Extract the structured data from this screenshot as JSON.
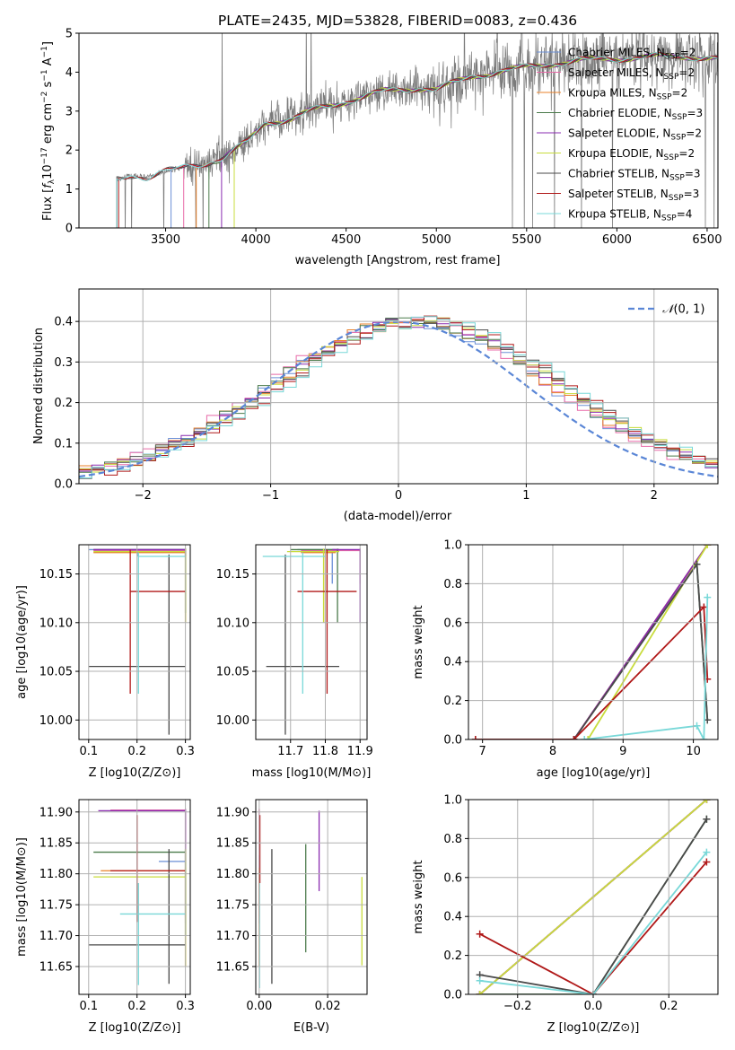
{
  "title": "PLATE=2435, MJD=53828, FIBERID=0083, z=0.436",
  "legend_spectrum": [
    {
      "label": "Chabrier MILES, N",
      "sub": "SSP",
      "tail": "=2",
      "color": "#6b8fd6"
    },
    {
      "label": "Salpeter MILES, N",
      "sub": "SSP",
      "tail": "=2",
      "color": "#e86aa8"
    },
    {
      "label": "Kroupa MILES, N",
      "sub": "SSP",
      "tail": "=2",
      "color": "#e8802a"
    },
    {
      "label": "Chabrier ELODIE, N",
      "sub": "SSP",
      "tail": "=3",
      "color": "#4a7a4a"
    },
    {
      "label": "Salpeter ELODIE, N",
      "sub": "SSP",
      "tail": "=2",
      "color": "#8a2bb0"
    },
    {
      "label": "Kroupa ELODIE, N",
      "sub": "SSP",
      "tail": "=2",
      "color": "#c8dc3c"
    },
    {
      "label": "Chabrier STELIB, N",
      "sub": "SSP",
      "tail": "=3",
      "color": "#4a4a4a"
    },
    {
      "label": "Salpeter STELIB, N",
      "sub": "SSP",
      "tail": "=3",
      "color": "#b01818"
    },
    {
      "label": "Kroupa STELIB, N",
      "sub": "SSP",
      "tail": "=4",
      "color": "#78d8d8"
    }
  ],
  "labels": {
    "spec_xlabel": "wavelength [Angstrom, rest frame]",
    "spec_ylabel": "Flux [f",
    "resid_xlabel": "(data-model)/error",
    "resid_ylabel": "Normed distribution",
    "resid_legend": "N(0, 1)",
    "age_ylabel": "age  [log10(age/yr)]",
    "z_xlabel": "Z [log10(Z/Z⊙)]",
    "mass_xlabel": "mass [log10(M/M⊙)]",
    "mass_ylabel": "mass [log10(M/M⊙)]",
    "ebv_xlabel": "E(B-V)",
    "mw_ylabel": "mass weight",
    "age_xlabel": "age  [log10(age/yr)]"
  },
  "chart_data": [
    {
      "type": "line",
      "panel": "spectrum",
      "title": "PLATE=2435, MJD=53828, FIBERID=0083, z=0.436",
      "xlabel": "wavelength [Angstrom, rest frame]",
      "ylabel": "Flux [f_λ 10^-17 erg cm^-2 s^-1 A^-1]",
      "xlim": [
        3020,
        6560
      ],
      "ylim": [
        0,
        5
      ],
      "xticks": [
        3500,
        4000,
        4500,
        5000,
        5500,
        6000,
        6500
      ],
      "yticks": [
        0,
        1,
        2,
        3,
        4,
        5
      ],
      "grid": false,
      "legend": "top-right",
      "continuum": [
        [
          3230,
          1.25
        ],
        [
          3300,
          1.35
        ],
        [
          3400,
          1.3
        ],
        [
          3500,
          1.45
        ],
        [
          3650,
          1.6
        ],
        [
          3800,
          1.75
        ],
        [
          3950,
          2.2
        ],
        [
          4050,
          2.7
        ],
        [
          4200,
          2.8
        ],
        [
          4300,
          3.0
        ],
        [
          4500,
          3.25
        ],
        [
          4700,
          3.5
        ],
        [
          4900,
          3.6
        ],
        [
          5000,
          3.55
        ],
        [
          5200,
          3.9
        ],
        [
          5400,
          4.05
        ],
        [
          5600,
          4.2
        ],
        [
          5800,
          4.3
        ],
        [
          6000,
          4.35
        ],
        [
          6200,
          4.4
        ],
        [
          6400,
          4.4
        ],
        [
          6560,
          4.35
        ]
      ],
      "data_range": [
        3230,
        6560
      ]
    },
    {
      "type": "bar",
      "panel": "residual_histogram",
      "xlabel": "(data-model)/error",
      "ylabel": "Normed distribution",
      "xlim": [
        -2.5,
        2.5
      ],
      "ylim": [
        0,
        0.48
      ],
      "xticks": [
        -2,
        -1,
        0,
        1,
        2
      ],
      "yticks": [
        0.0,
        0.1,
        0.2,
        0.3,
        0.4
      ],
      "grid": true,
      "legend": "top-right",
      "series_name": "N(0, 1)",
      "bin_width": 0.1
    },
    {
      "type": "scatter",
      "panel": "age_vs_Z",
      "xlabel": "Z [log10(Z/Z⊙)]",
      "ylabel": "age [log10(age/yr)]",
      "xlim": [
        0.08,
        0.31
      ],
      "ylim": [
        9.98,
        10.18
      ],
      "xticks": [
        0.1,
        0.2,
        0.3
      ],
      "yticks": [
        10.0,
        10.05,
        10.1,
        10.15
      ],
      "points": [
        {
          "x": 0.202,
          "y": 10.175,
          "xerr": [
            0.1,
            0.3
          ],
          "yerr": [
            10.168,
            10.175
          ],
          "color": "#6b8fd6"
        },
        {
          "x": 0.3,
          "y": 10.174,
          "xerr": [
            0.11,
            0.3
          ],
          "yerr": [
            10.168,
            10.176
          ],
          "color": "#e86aa8"
        },
        {
          "x": 0.3,
          "y": 10.172,
          "xerr": [
            0.11,
            0.3
          ],
          "yerr": [
            10.1,
            10.176
          ],
          "color": "#e8802a"
        },
        {
          "x": 0.3,
          "y": 10.175,
          "xerr": [
            0.11,
            0.3
          ],
          "yerr": [
            10.11,
            10.176
          ],
          "color": "#4a7a4a"
        },
        {
          "x": 0.3,
          "y": 10.175,
          "xerr": [
            0.11,
            0.3
          ],
          "yerr": [
            10.168,
            10.176
          ],
          "color": "#8a2bb0"
        },
        {
          "x": 0.3,
          "y": 10.173,
          "xerr": [
            0.11,
            0.3
          ],
          "yerr": [
            10.1,
            10.176
          ],
          "color": "#c8dc3c"
        },
        {
          "x": 0.266,
          "y": 10.055,
          "xerr": [
            0.1,
            0.3
          ],
          "yerr": [
            9.985,
            10.17
          ],
          "color": "#4a4a4a"
        },
        {
          "x": 0.186,
          "y": 10.132,
          "xerr": [
            0.186,
            0.3
          ],
          "yerr": [
            10.027,
            10.175
          ],
          "color": "#b01818"
        },
        {
          "x": 0.203,
          "y": 10.168,
          "xerr": [
            0.203,
            0.3
          ],
          "yerr": [
            10.027,
            10.172
          ],
          "color": "#78d8d8"
        }
      ]
    },
    {
      "type": "scatter",
      "panel": "age_vs_mass",
      "xlabel": "mass [log10(M/M⊙)]",
      "xlim": [
        11.6,
        11.92
      ],
      "ylim": [
        9.98,
        10.18
      ],
      "xticks": [
        11.7,
        11.8,
        11.9
      ],
      "yticks": [
        10.0,
        10.05,
        10.1,
        10.15
      ],
      "points": [
        {
          "x": 11.82,
          "y": 10.175,
          "xerr": [
            11.72,
            11.83
          ],
          "yerr": [
            10.14,
            10.175
          ],
          "color": "#6b8fd6"
        },
        {
          "x": 11.9,
          "y": 10.174,
          "xerr": [
            11.73,
            11.9
          ],
          "yerr": [
            10.14,
            10.176
          ],
          "color": "#e86aa8"
        },
        {
          "x": 11.8,
          "y": 10.172,
          "xerr": [
            11.73,
            11.83
          ],
          "yerr": [
            10.1,
            10.176
          ],
          "color": "#e8802a"
        },
        {
          "x": 11.835,
          "y": 10.175,
          "xerr": [
            11.7,
            11.84
          ],
          "yerr": [
            10.1,
            10.176
          ],
          "color": "#4a7a4a"
        },
        {
          "x": 11.9,
          "y": 10.175,
          "xerr": [
            11.82,
            11.9
          ],
          "yerr": [
            10.1,
            10.176
          ],
          "color": "#8a2bb0"
        },
        {
          "x": 11.795,
          "y": 10.173,
          "xerr": [
            11.69,
            11.84
          ],
          "yerr": [
            10.1,
            10.176
          ],
          "color": "#c8dc3c"
        },
        {
          "x": 11.685,
          "y": 10.055,
          "xerr": [
            11.63,
            11.84
          ],
          "yerr": [
            9.985,
            10.17
          ],
          "color": "#4a4a4a"
        },
        {
          "x": 11.805,
          "y": 10.132,
          "xerr": [
            11.72,
            11.89
          ],
          "yerr": [
            10.027,
            10.175
          ],
          "color": "#b01818"
        },
        {
          "x": 11.735,
          "y": 10.168,
          "xerr": [
            11.62,
            11.8
          ],
          "yerr": [
            10.027,
            10.172
          ],
          "color": "#78d8d8"
        }
      ]
    },
    {
      "type": "line",
      "panel": "mass_weight_vs_age",
      "xlabel": "age [log10(age/yr)]",
      "ylabel": "mass weight",
      "xlim": [
        6.8,
        10.35
      ],
      "ylim": [
        0,
        1.0
      ],
      "xticks": [
        7,
        8,
        9,
        10
      ],
      "yticks": [
        0.0,
        0.2,
        0.4,
        0.6,
        0.8,
        1.0
      ],
      "series": [
        {
          "name": "Chabrier MILES",
          "color": "#6b8fd6",
          "x": [
            8.3,
            10.2
          ],
          "y": [
            0.0,
            1.0
          ]
        },
        {
          "name": "Salpeter MILES",
          "color": "#e86aa8",
          "x": [
            8.3,
            10.2
          ],
          "y": [
            0.0,
            1.0
          ]
        },
        {
          "name": "Kroupa MILES",
          "color": "#e8802a",
          "x": [
            8.3,
            10.2
          ],
          "y": [
            0.0,
            1.0
          ]
        },
        {
          "name": "Chabrier ELODIE",
          "color": "#4a7a4a",
          "x": [
            8.3,
            10.05,
            10.2
          ],
          "y": [
            0.0,
            0.9,
            0.1
          ]
        },
        {
          "name": "Salpeter ELODIE",
          "color": "#8a2bb0",
          "x": [
            8.3,
            10.2
          ],
          "y": [
            0.0,
            1.0
          ]
        },
        {
          "name": "Kroupa ELODIE",
          "color": "#c8dc3c",
          "x": [
            8.5,
            10.2
          ],
          "y": [
            0.0,
            1.0
          ]
        },
        {
          "name": "Chabrier STELIB",
          "color": "#4a4a4a",
          "x": [
            6.9,
            8.3,
            10.05,
            10.2
          ],
          "y": [
            0.0,
            0.0,
            0.9,
            0.1
          ]
        },
        {
          "name": "Salpeter STELIB",
          "color": "#b01818",
          "x": [
            6.9,
            8.3,
            10.15,
            10.2
          ],
          "y": [
            0.0,
            0.0,
            0.68,
            0.31
          ]
        },
        {
          "name": "Kroupa STELIB",
          "color": "#78d8d8",
          "x": [
            8.45,
            10.05,
            10.15,
            10.2
          ],
          "y": [
            0.0,
            0.07,
            0.0,
            0.73
          ]
        }
      ]
    },
    {
      "type": "scatter",
      "panel": "mass_vs_Z",
      "xlabel": "Z [log10(Z/Z⊙)]",
      "ylabel": "mass [log10(M/M⊙)]",
      "xlim": [
        0.08,
        0.31
      ],
      "ylim": [
        11.605,
        11.92
      ],
      "xticks": [
        0.1,
        0.2,
        0.3
      ],
      "yticks": [
        11.65,
        11.7,
        11.75,
        11.8,
        11.85,
        11.9
      ],
      "points": [
        {
          "x": 0.3,
          "y": 11.82,
          "xerr": [
            0.245,
            0.3
          ],
          "yerr": [
            11.72,
            11.83
          ],
          "color": "#6b8fd6"
        },
        {
          "x": 0.3,
          "y": 11.903,
          "xerr": [
            0.145,
            0.3
          ],
          "yerr": [
            11.73,
            11.905
          ],
          "color": "#e86aa8"
        },
        {
          "x": 0.3,
          "y": 11.805,
          "xerr": [
            0.125,
            0.3
          ],
          "yerr": [
            11.65,
            11.81
          ],
          "color": "#e8802a"
        },
        {
          "x": 0.3,
          "y": 11.835,
          "xerr": [
            0.11,
            0.3
          ],
          "yerr": [
            11.7,
            11.84
          ],
          "color": "#4a7a4a"
        },
        {
          "x": 0.3,
          "y": 11.902,
          "xerr": [
            0.12,
            0.3
          ],
          "yerr": [
            11.82,
            11.905
          ],
          "color": "#8a2bb0"
        },
        {
          "x": 0.3,
          "y": 11.795,
          "xerr": [
            0.11,
            0.3
          ],
          "yerr": [
            11.65,
            11.84
          ],
          "color": "#c8dc3c"
        },
        {
          "x": 0.266,
          "y": 11.685,
          "xerr": [
            0.1,
            0.3
          ],
          "yerr": [
            11.622,
            11.84
          ],
          "color": "#4a4a4a"
        },
        {
          "x": 0.2,
          "y": 11.805,
          "xerr": [
            0.145,
            0.3
          ],
          "yerr": [
            11.722,
            11.895
          ],
          "color": "#b01818"
        },
        {
          "x": 0.203,
          "y": 11.735,
          "xerr": [
            0.165,
            0.3
          ],
          "yerr": [
            11.62,
            11.785
          ],
          "color": "#78d8d8"
        }
      ]
    },
    {
      "type": "scatter",
      "panel": "mass_vs_EBV",
      "xlabel": "E(B-V)",
      "xlim": [
        -0.001,
        0.0315
      ],
      "ylim": [
        11.605,
        11.92
      ],
      "xticks": [
        0.0,
        0.02
      ],
      "yticks": [
        11.65,
        11.7,
        11.75,
        11.8,
        11.85,
        11.9
      ],
      "points": [
        {
          "x": 0.0,
          "yerr": [
            11.72,
            11.83
          ],
          "color": "#6b8fd6"
        },
        {
          "x": 0.0,
          "yerr": [
            11.73,
            11.905
          ],
          "color": "#e86aa8"
        },
        {
          "x": 0.0,
          "yerr": [
            11.65,
            11.81
          ],
          "color": "#e8802a"
        },
        {
          "x": 0.0136,
          "yerr": [
            11.673,
            11.848
          ],
          "color": "#4a7a4a"
        },
        {
          "x": 0.0175,
          "yerr": [
            11.772,
            11.902
          ],
          "color": "#8a2bb0"
        },
        {
          "x": 0.03,
          "yerr": [
            11.652,
            11.795
          ],
          "color": "#c8dc3c"
        },
        {
          "x": 0.0037,
          "yerr": [
            11.622,
            11.84
          ],
          "color": "#4a4a4a"
        },
        {
          "x": 0.0002,
          "yerr": [
            11.785,
            11.895
          ],
          "color": "#b01818"
        },
        {
          "x": 0.0001,
          "yerr": [
            11.615,
            11.785
          ],
          "color": "#78d8d8"
        }
      ]
    },
    {
      "type": "line",
      "panel": "mass_weight_vs_Z",
      "xlabel": "Z [log10(Z/Z⊙)]",
      "ylabel": "mass weight",
      "xlim": [
        -0.33,
        0.33
      ],
      "ylim": [
        0,
        1.0
      ],
      "xticks": [
        -0.2,
        0.0,
        0.2
      ],
      "yticks": [
        0.0,
        0.2,
        0.4,
        0.6,
        0.8,
        1.0
      ],
      "series": [
        {
          "name": "Chabrier MILES",
          "color": "#6b8fd6",
          "x": [
            -0.3,
            0.3
          ],
          "y": [
            0.0,
            1.0
          ]
        },
        {
          "name": "Salpeter MILES",
          "color": "#e86aa8",
          "x": [
            -0.3,
            0.3
          ],
          "y": [
            0.0,
            1.0
          ]
        },
        {
          "name": "Kroupa MILES",
          "color": "#e8802a",
          "x": [
            -0.3,
            0.3
          ],
          "y": [
            0.0,
            1.0
          ]
        },
        {
          "name": "Chabrier ELODIE",
          "color": "#4a7a4a",
          "x": [
            -0.3,
            0.0,
            0.3
          ],
          "y": [
            0.0,
            0.0,
            0.9
          ]
        },
        {
          "name": "Salpeter ELODIE",
          "color": "#8a2bb0",
          "x": [
            -0.3,
            0.3
          ],
          "y": [
            0.0,
            1.0
          ]
        },
        {
          "name": "Kroupa ELODIE",
          "color": "#c8dc3c",
          "x": [
            -0.3,
            0.3
          ],
          "y": [
            0.0,
            1.0
          ]
        },
        {
          "name": "Chabrier STELIB",
          "color": "#4a4a4a",
          "x": [
            -0.3,
            0.0,
            0.3
          ],
          "y": [
            0.1,
            0.0,
            0.9
          ]
        },
        {
          "name": "Salpeter STELIB",
          "color": "#b01818",
          "x": [
            -0.3,
            0.0,
            0.3
          ],
          "y": [
            0.31,
            0.0,
            0.68
          ]
        },
        {
          "name": "Kroupa STELIB",
          "color": "#78d8d8",
          "x": [
            -0.3,
            0.0,
            0.3
          ],
          "y": [
            0.07,
            0.0,
            0.73
          ]
        }
      ]
    }
  ]
}
